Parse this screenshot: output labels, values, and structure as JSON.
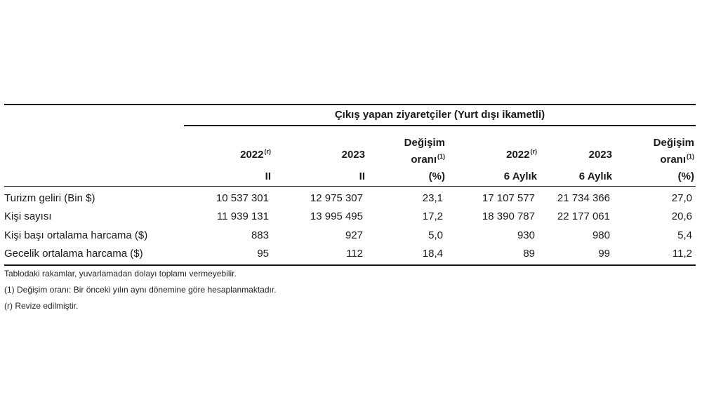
{
  "table": {
    "group_title": "Çıkış yapan ziyaretçiler (Yurt dışı ikametli)",
    "columns": [
      {
        "line1": "2022",
        "sup": "(r)",
        "line2": "II",
        "line3": ""
      },
      {
        "line1": "2023",
        "sup": "",
        "line2": "II",
        "line3": ""
      },
      {
        "line1": "Değişim",
        "sup": "",
        "line2": "oranı",
        "sup2": "(1)",
        "line3": "(%)"
      },
      {
        "line1": "2022",
        "sup": "(r)",
        "line2": "6 Aylık",
        "line3": ""
      },
      {
        "line1": "2023",
        "sup": "",
        "line2": "6 Aylık",
        "line3": ""
      },
      {
        "line1": "Değişim",
        "sup": "",
        "line2": "oranı",
        "sup2": "(1)",
        "line3": "(%)"
      }
    ],
    "rows": [
      {
        "label": "Turizm geliri (Bin $)",
        "values": [
          "10 537 301",
          "12 975 307",
          "23,1",
          "17 107 577",
          "21 734 366",
          "27,0"
        ]
      },
      {
        "label": "Kişi sayısı",
        "values": [
          "11 939 131",
          "13 995 495",
          "17,2",
          "18 390 787",
          "22 177 061",
          "20,6"
        ]
      },
      {
        "label": "Kişi başı ortalama harcama ($)",
        "values": [
          "883",
          "927",
          "5,0",
          "930",
          "980",
          "5,4"
        ]
      },
      {
        "label": "Gecelik ortalama harcama ($)",
        "values": [
          "95",
          "112",
          "18,4",
          "89",
          "99",
          "11,2"
        ]
      }
    ]
  },
  "notes": [
    "Tablodaki rakamlar, yuvarlamadan dolayı toplamı vermeyebilir.",
    "(1) Değişim oranı: Bir önceki yılın aynı dönemine göre hesaplanmaktadır.",
    "(r) Revize edilmiştir."
  ]
}
